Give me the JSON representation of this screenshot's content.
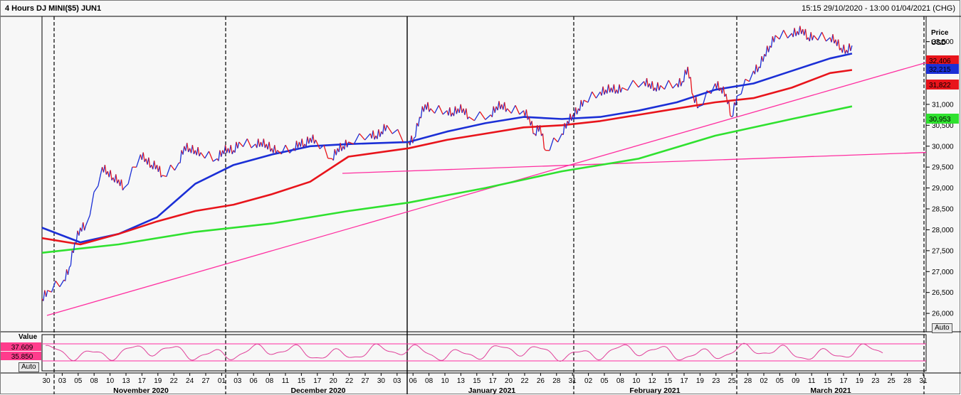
{
  "header": {
    "title": "4 Hours DJ MINI($5) JUN1",
    "range": "15:15 29/10/2020 - 13:00 01/04/2021 (CHG)"
  },
  "price_axis": {
    "label_line1": "Price",
    "label_line2": "USD",
    "ticks": [
      "26,000",
      "26,500",
      "27,000",
      "27,500",
      "28,000",
      "28,500",
      "29,000",
      "29,500",
      "30,000",
      "30,500",
      "31,000",
      "31,500",
      "32,000",
      "32,500"
    ],
    "auto_label": "Auto",
    "tags": [
      {
        "text": "32,406",
        "color": "#e8141b"
      },
      {
        "text": "32,215",
        "color": "#1b2fd6"
      },
      {
        "text": "31,822",
        "color": "#e8141b"
      },
      {
        "text": "30,953",
        "color": "#2fe12f"
      }
    ]
  },
  "oscillator": {
    "label": "Value",
    "tag_high": "37.609",
    "tag_low": "35.850",
    "auto_label": "Auto",
    "tag_color": "#ff3c8c"
  },
  "x_axis": {
    "day_ticks": [
      "30",
      "03",
      "05",
      "08",
      "10",
      "13",
      "17",
      "19",
      "22",
      "24",
      "27",
      "01",
      "03",
      "06",
      "08",
      "11",
      "15",
      "17",
      "20",
      "22",
      "27",
      "30",
      "03",
      "06",
      "08",
      "10",
      "13",
      "15",
      "17",
      "20",
      "22",
      "26",
      "28",
      "31",
      "02",
      "05",
      "08",
      "10",
      "12",
      "15",
      "17",
      "19",
      "23",
      "25",
      "28",
      "02",
      "05",
      "09",
      "11",
      "15",
      "17",
      "19",
      "23",
      "25",
      "28",
      "31"
    ],
    "months": [
      "November 2020",
      "December 2020",
      "January 2021",
      "February 2021",
      "March 2021"
    ]
  },
  "colors": {
    "up": "#1b2fd6",
    "down": "#e8141b",
    "ma_fast": "#1b2fd6",
    "ma_mid": "#e8141b",
    "ma_slow": "#2fe12f",
    "trendline": "#ff2ea0"
  },
  "chart_data": {
    "type": "line",
    "title": "4 Hours DJ MINI($5) JUN1",
    "ylabel": "Price USD",
    "ylim": [
      25900,
      32800
    ],
    "x_date_range": [
      "2020-10-29",
      "2021-04-01"
    ],
    "series": [
      {
        "name": "",
        "kind": "price",
        "values": [
          [
            "2020-10-29",
            26350
          ],
          [
            "2020-10-30",
            26550
          ],
          [
            "2020-11-02",
            26800
          ],
          [
            "2020-11-03",
            27100
          ],
          [
            "2020-11-04",
            27700
          ],
          [
            "2020-11-05",
            28050
          ],
          [
            "2020-11-06",
            28100
          ],
          [
            "2020-11-09",
            29500
          ],
          [
            "2020-11-10",
            29400
          ],
          [
            "2020-11-11",
            29250
          ],
          [
            "2020-11-12",
            29200
          ],
          [
            "2020-11-13",
            29000
          ],
          [
            "2020-11-16",
            29800
          ],
          [
            "2020-11-17",
            29700
          ],
          [
            "2020-11-18",
            29550
          ],
          [
            "2020-11-19",
            29550
          ],
          [
            "2020-11-20",
            29300
          ],
          [
            "2020-11-23",
            29600
          ],
          [
            "2020-11-24",
            30000
          ],
          [
            "2020-11-25",
            29950
          ],
          [
            "2020-11-26",
            29900
          ],
          [
            "2020-11-27",
            29850
          ],
          [
            "2020-11-30",
            29700
          ],
          [
            "2020-12-01",
            29900
          ],
          [
            "2020-12-02",
            29950
          ],
          [
            "2020-12-03",
            29900
          ],
          [
            "2020-12-04",
            30100
          ],
          [
            "2020-12-07",
            30050
          ],
          [
            "2020-12-08",
            30100
          ],
          [
            "2020-12-09",
            30050
          ],
          [
            "2020-12-10",
            29950
          ],
          [
            "2020-12-11",
            29900
          ],
          [
            "2020-12-14",
            29950
          ],
          [
            "2020-12-15",
            30100
          ],
          [
            "2020-12-16",
            30050
          ],
          [
            "2020-12-17",
            30200
          ],
          [
            "2020-12-18",
            30150
          ],
          [
            "2020-12-21",
            29700
          ],
          [
            "2020-12-22",
            29950
          ],
          [
            "2020-12-23",
            30000
          ],
          [
            "2020-12-24",
            30100
          ],
          [
            "2020-12-28",
            30300
          ],
          [
            "2020-12-29",
            30250
          ],
          [
            "2020-12-30",
            30350
          ],
          [
            "2020-12-31",
            30500
          ],
          [
            "2021-01-04",
            30100
          ],
          [
            "2021-01-05",
            30200
          ],
          [
            "2021-01-06",
            30700
          ],
          [
            "2021-01-07",
            31000
          ],
          [
            "2021-01-08",
            30900
          ],
          [
            "2021-01-11",
            30850
          ],
          [
            "2021-01-12",
            30800
          ],
          [
            "2021-01-13",
            30900
          ],
          [
            "2021-01-14",
            30900
          ],
          [
            "2021-01-15",
            30700
          ],
          [
            "2021-01-19",
            30750
          ],
          [
            "2021-01-20",
            30950
          ],
          [
            "2021-01-21",
            31000
          ],
          [
            "2021-01-22",
            30900
          ],
          [
            "2021-01-25",
            30850
          ],
          [
            "2021-01-26",
            30700
          ],
          [
            "2021-01-27",
            30300
          ],
          [
            "2021-01-28",
            30500
          ],
          [
            "2021-01-29",
            29900
          ],
          [
            "2021-02-01",
            30300
          ],
          [
            "2021-02-02",
            30600
          ],
          [
            "2021-02-03",
            30750
          ],
          [
            "2021-02-04",
            30900
          ],
          [
            "2021-02-05",
            31100
          ],
          [
            "2021-02-08",
            31300
          ],
          [
            "2021-02-09",
            31350
          ],
          [
            "2021-02-10",
            31400
          ],
          [
            "2021-02-11",
            31350
          ],
          [
            "2021-02-12",
            31400
          ],
          [
            "2021-02-16",
            31550
          ],
          [
            "2021-02-17",
            31500
          ],
          [
            "2021-02-18",
            31400
          ],
          [
            "2021-02-19",
            31450
          ],
          [
            "2021-02-22",
            31500
          ],
          [
            "2021-02-23",
            31550
          ],
          [
            "2021-02-24",
            31900
          ],
          [
            "2021-02-25",
            31200
          ],
          [
            "2021-02-26",
            30950
          ],
          [
            "2021-03-01",
            31500
          ],
          [
            "2021-03-02",
            31400
          ],
          [
            "2021-03-03",
            31250
          ],
          [
            "2021-03-04",
            30700
          ],
          [
            "2021-03-05",
            31200
          ],
          [
            "2021-03-08",
            31800
          ],
          [
            "2021-03-09",
            31900
          ],
          [
            "2021-03-10",
            32200
          ],
          [
            "2021-03-11",
            32400
          ],
          [
            "2021-03-12",
            32650
          ],
          [
            "2021-03-15",
            32700
          ],
          [
            "2021-03-16",
            32750
          ],
          [
            "2021-03-17",
            32800
          ],
          [
            "2021-03-18",
            32600
          ],
          [
            "2021-03-19",
            32650
          ],
          [
            "2021-03-22",
            32600
          ],
          [
            "2021-03-23",
            32550
          ],
          [
            "2021-03-24",
            32350
          ],
          [
            "2021-03-25",
            32300
          ],
          [
            "2021-03-26",
            32406
          ]
        ]
      },
      {
        "name": "",
        "kind": "ma_fast",
        "values": [
          [
            "2020-10-29",
            28050
          ],
          [
            "2020-11-05",
            27700
          ],
          [
            "2020-11-12",
            27900
          ],
          [
            "2020-11-19",
            28300
          ],
          [
            "2020-11-26",
            29100
          ],
          [
            "2020-12-03",
            29550
          ],
          [
            "2020-12-10",
            29800
          ],
          [
            "2020-12-17",
            30000
          ],
          [
            "2020-12-24",
            30050
          ],
          [
            "2021-01-04",
            30100
          ],
          [
            "2021-01-11",
            30350
          ],
          [
            "2021-01-18",
            30550
          ],
          [
            "2021-01-25",
            30700
          ],
          [
            "2021-02-01",
            30650
          ],
          [
            "2021-02-08",
            30700
          ],
          [
            "2021-02-15",
            30850
          ],
          [
            "2021-02-22",
            31050
          ],
          [
            "2021-03-01",
            31350
          ],
          [
            "2021-03-08",
            31500
          ],
          [
            "2021-03-15",
            31800
          ],
          [
            "2021-03-22",
            32100
          ],
          [
            "2021-03-26",
            32215
          ]
        ]
      },
      {
        "name": "",
        "kind": "ma_mid",
        "values": [
          [
            "2020-10-29",
            27800
          ],
          [
            "2020-11-05",
            27650
          ],
          [
            "2020-11-12",
            27900
          ],
          [
            "2020-11-19",
            28200
          ],
          [
            "2020-11-26",
            28450
          ],
          [
            "2020-12-03",
            28600
          ],
          [
            "2020-12-10",
            28850
          ],
          [
            "2020-12-17",
            29150
          ],
          [
            "2020-12-24",
            29750
          ],
          [
            "2021-01-04",
            29950
          ],
          [
            "2021-01-11",
            30150
          ],
          [
            "2021-01-18",
            30300
          ],
          [
            "2021-01-25",
            30450
          ],
          [
            "2021-02-01",
            30500
          ],
          [
            "2021-02-08",
            30600
          ],
          [
            "2021-02-15",
            30750
          ],
          [
            "2021-02-22",
            30900
          ],
          [
            "2021-03-01",
            31050
          ],
          [
            "2021-03-08",
            31150
          ],
          [
            "2021-03-15",
            31400
          ],
          [
            "2021-03-22",
            31750
          ],
          [
            "2021-03-26",
            31822
          ]
        ]
      },
      {
        "name": "",
        "kind": "ma_slow",
        "values": [
          [
            "2020-10-29",
            27450
          ],
          [
            "2020-11-12",
            27650
          ],
          [
            "2020-11-26",
            27950
          ],
          [
            "2020-12-10",
            28150
          ],
          [
            "2020-12-24",
            28450
          ],
          [
            "2021-01-04",
            28650
          ],
          [
            "2021-01-18",
            29000
          ],
          [
            "2021-02-01",
            29400
          ],
          [
            "2021-02-15",
            29700
          ],
          [
            "2021-03-01",
            30250
          ],
          [
            "2021-03-15",
            30650
          ],
          [
            "2021-03-26",
            30953
          ]
        ]
      }
    ]
  }
}
